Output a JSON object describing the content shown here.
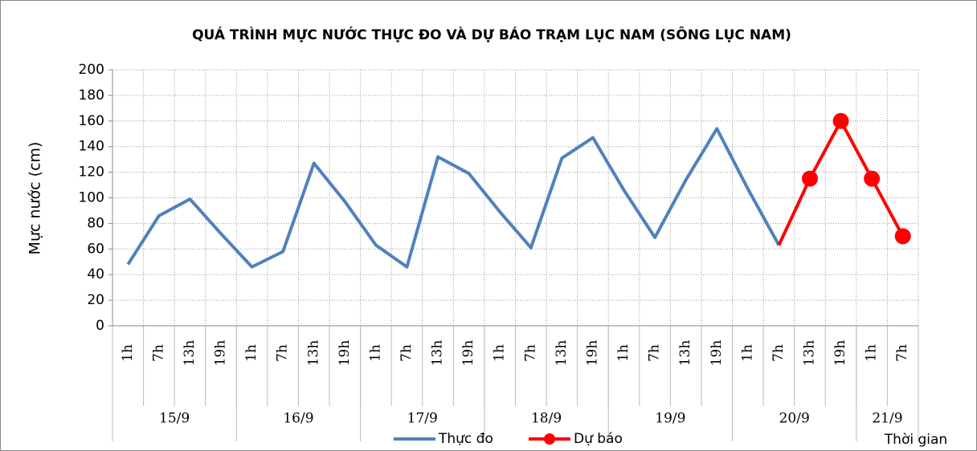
{
  "chart_data": {
    "type": "line",
    "title": "QUÁ TRÌNH MỰC NƯỚC THỰC ĐO VÀ DỰ BÁO TRẠM LỤC NAM (SÔNG LỤC NAM)",
    "y_label": "Mực nước (cm)",
    "x_label": "Thời gian",
    "categories": [
      {
        "hour": "1h",
        "date": "15/9"
      },
      {
        "hour": "7h",
        "date": "15/9"
      },
      {
        "hour": "13h",
        "date": "15/9"
      },
      {
        "hour": "19h",
        "date": "15/9"
      },
      {
        "hour": "1h",
        "date": "16/9"
      },
      {
        "hour": "7h",
        "date": "16/9"
      },
      {
        "hour": "13h",
        "date": "16/9"
      },
      {
        "hour": "19h",
        "date": "16/9"
      },
      {
        "hour": "1h",
        "date": "17/9"
      },
      {
        "hour": "7h",
        "date": "17/9"
      },
      {
        "hour": "13h",
        "date": "17/9"
      },
      {
        "hour": "19h",
        "date": "17/9"
      },
      {
        "hour": "1h",
        "date": "18/9"
      },
      {
        "hour": "7h",
        "date": "18/9"
      },
      {
        "hour": "13h",
        "date": "18/9"
      },
      {
        "hour": "19h",
        "date": "18/9"
      },
      {
        "hour": "1h",
        "date": "19/9"
      },
      {
        "hour": "7h",
        "date": "19/9"
      },
      {
        "hour": "13h",
        "date": "19/9"
      },
      {
        "hour": "19h",
        "date": "19/9"
      },
      {
        "hour": "1h",
        "date": "20/9"
      },
      {
        "hour": "7h",
        "date": "20/9"
      },
      {
        "hour": "13h",
        "date": "20/9"
      },
      {
        "hour": "19h",
        "date": "20/9"
      },
      {
        "hour": "1h",
        "date": "21/9"
      },
      {
        "hour": "7h",
        "date": "21/9"
      }
    ],
    "series": [
      {
        "name": "Thực đo",
        "color": "#4f81bd",
        "marker": false,
        "values": [
          48,
          86,
          99,
          72,
          46,
          58,
          127,
          97,
          63,
          46,
          132,
          119,
          89,
          61,
          131,
          147,
          106,
          69,
          114,
          154,
          107,
          63,
          null,
          null,
          null,
          null
        ]
      },
      {
        "name": "Dự báo",
        "color": "#ff0000",
        "marker": true,
        "values": [
          null,
          null,
          null,
          null,
          null,
          null,
          null,
          null,
          null,
          null,
          null,
          null,
          null,
          null,
          null,
          null,
          null,
          null,
          null,
          null,
          null,
          63,
          115,
          160,
          115,
          70
        ]
      }
    ],
    "ylim": [
      0,
      200
    ],
    "yticks": [
      0,
      20,
      40,
      60,
      80,
      100,
      120,
      140,
      160,
      180,
      200
    ],
    "grid": true,
    "legend": "bottom"
  }
}
